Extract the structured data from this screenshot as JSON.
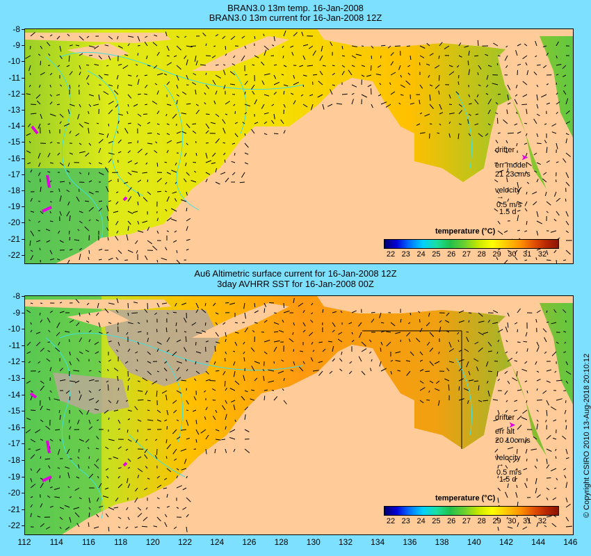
{
  "panel_top": {
    "title_line1": "BRAN3.0 13m temp. 16-Jan-2008",
    "title_line2": "BRAN3.0 13m current for 16-Jan-2008 12Z",
    "legend": {
      "drifter": "drifter",
      "err_label": "err model",
      "err_values": "21 23cm/s",
      "velocity": "velocity",
      "velocity_value": "0.5 m/s",
      "velocity_days": "1.5 d"
    },
    "colorbar": {
      "title": "temperature (°C)",
      "ticks": [
        "22",
        "23",
        "24",
        "25",
        "26",
        "27",
        "28",
        "29",
        "30",
        "31",
        "32"
      ]
    }
  },
  "panel_bottom": {
    "title_line1": "Au6 Altimetric surface current for 16-Jan-2008 12Z",
    "title_line2": "3day AVHRR SST for 16-Jan-2008 00Z",
    "legend": {
      "drifter": "drifter",
      "err_label": "err alt",
      "err_values": "20 10cm/s",
      "velocity": "velocity",
      "velocity_value": "0.5 m/s",
      "velocity_days": "1.5 d"
    },
    "colorbar": {
      "title": "temperature (°C)",
      "ticks": [
        "22",
        "23",
        "24",
        "25",
        "26",
        "27",
        "28",
        "29",
        "30",
        "31",
        "32"
      ]
    }
  },
  "y_ticks": [
    "-8",
    "-9",
    "-10",
    "-11",
    "-12",
    "-13",
    "-14",
    "-15",
    "-16",
    "-17",
    "-18",
    "-19",
    "-20",
    "-21",
    "-22"
  ],
  "x_ticks": [
    "112",
    "114",
    "116",
    "118",
    "120",
    "122",
    "124",
    "126",
    "128",
    "130",
    "132",
    "134",
    "136",
    "138",
    "140",
    "142",
    "144",
    "146"
  ],
  "copyright": "© Copyright CSIRO 2010   13-Aug-2018 20:10:12",
  "colors": {
    "background": "#7ee0ff",
    "land": "#ffcc99",
    "cloud": "#b8a898",
    "contour": "#40e0e0",
    "drifter": "#e000e0"
  }
}
